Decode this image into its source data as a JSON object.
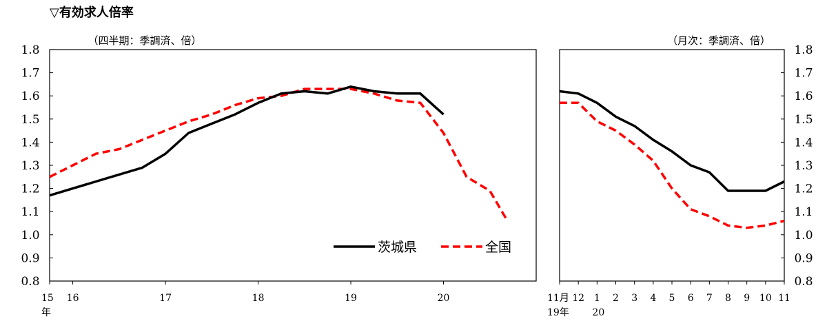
{
  "title": "▽有効求人倍率",
  "chart_data": [
    {
      "type": "line",
      "unit_label": "（四半期：季調済、倍）",
      "ylim": [
        0.8,
        1.8
      ],
      "yticks": [
        "0.8",
        "0.9",
        "1.0",
        "1.1",
        "1.2",
        "1.3",
        "1.4",
        "1.5",
        "1.6",
        "1.7",
        "1.8"
      ],
      "xlim": [
        0,
        21
      ],
      "x_labels": [
        {
          "x": 0,
          "text": "15",
          "sub": "年"
        },
        {
          "x": 1,
          "text": "16"
        },
        {
          "x": 5,
          "text": "17"
        },
        {
          "x": 9,
          "text": "18"
        },
        {
          "x": 13,
          "text": "19"
        },
        {
          "x": 17,
          "text": "20"
        }
      ],
      "x_ticks": [
        0,
        1,
        5,
        9,
        13,
        17
      ],
      "legend": {
        "placement": "bottom-right"
      },
      "series": [
        {
          "name": "茨城県",
          "color": "#000000",
          "dash": "solid",
          "x": [
            0,
            1,
            2,
            3,
            4,
            5,
            6,
            7,
            8,
            9,
            10,
            11,
            12,
            13,
            14,
            15,
            16,
            17
          ],
          "values": [
            1.17,
            1.2,
            1.23,
            1.26,
            1.29,
            1.35,
            1.44,
            1.48,
            1.52,
            1.57,
            1.61,
            1.62,
            1.61,
            1.64,
            1.62,
            1.61,
            1.61,
            1.52
          ]
        },
        {
          "name": "全国",
          "color": "#ff0000",
          "dash": "dashed",
          "x": [
            0,
            1,
            2,
            3,
            4,
            5,
            6,
            7,
            8,
            9,
            10,
            11,
            12,
            13,
            14,
            15,
            16,
            17,
            18,
            19,
            19.7
          ],
          "values": [
            1.25,
            1.3,
            1.35,
            1.37,
            1.41,
            1.45,
            1.49,
            1.52,
            1.56,
            1.59,
            1.6,
            1.63,
            1.63,
            1.63,
            1.61,
            1.58,
            1.57,
            1.44,
            1.25,
            1.19,
            1.07
          ]
        }
      ]
    },
    {
      "type": "line",
      "unit_label": "（月次：季調済、倍）",
      "ylim": [
        0.8,
        1.8
      ],
      "yticks": [
        "0.8",
        "0.9",
        "1.0",
        "1.1",
        "1.2",
        "1.3",
        "1.4",
        "1.5",
        "1.6",
        "1.7",
        "1.8"
      ],
      "xlim": [
        0,
        12
      ],
      "x_labels": [
        {
          "x": 0,
          "text": "11月",
          "sub": "19年"
        },
        {
          "x": 1,
          "text": "12"
        },
        {
          "x": 2,
          "text": "1",
          "sub": "20"
        },
        {
          "x": 3,
          "text": "2"
        },
        {
          "x": 4,
          "text": "3"
        },
        {
          "x": 5,
          "text": "4"
        },
        {
          "x": 6,
          "text": "5"
        },
        {
          "x": 7,
          "text": "6"
        },
        {
          "x": 8,
          "text": "7"
        },
        {
          "x": 9,
          "text": "8"
        },
        {
          "x": 10,
          "text": "9"
        },
        {
          "x": 11,
          "text": "10"
        },
        {
          "x": 12,
          "text": "11"
        }
      ],
      "series": [
        {
          "name": "茨城県",
          "color": "#000000",
          "dash": "solid",
          "x": [
            0,
            1,
            2,
            3,
            4,
            5,
            6,
            7,
            8,
            9,
            10,
            11,
            12
          ],
          "values": [
            1.62,
            1.61,
            1.57,
            1.51,
            1.47,
            1.41,
            1.36,
            1.3,
            1.27,
            1.19,
            1.19,
            1.19,
            1.23
          ]
        },
        {
          "name": "全国",
          "color": "#ff0000",
          "dash": "dashed",
          "x": [
            0,
            1,
            2,
            3,
            4,
            5,
            6,
            7,
            8,
            9,
            10,
            11,
            12
          ],
          "values": [
            1.57,
            1.57,
            1.49,
            1.45,
            1.39,
            1.32,
            1.2,
            1.11,
            1.08,
            1.04,
            1.03,
            1.04,
            1.06
          ]
        }
      ]
    }
  ]
}
